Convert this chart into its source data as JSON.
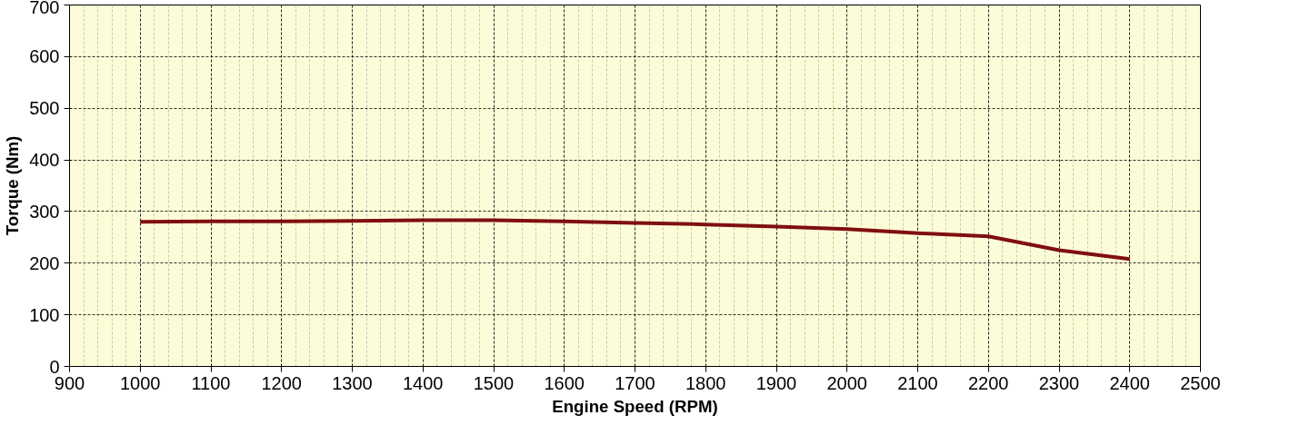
{
  "chart_data": {
    "type": "line",
    "xlabel": "Engine Speed (RPM)",
    "ylabel": "Torque (Nm)",
    "x": [
      1000,
      1100,
      1200,
      1300,
      1400,
      1500,
      1600,
      1700,
      1800,
      1900,
      2000,
      2100,
      2200,
      2300,
      2400
    ],
    "series": [
      {
        "color": "#7f0f10",
        "values": [
          280,
          281,
          281,
          282,
          283,
          283,
          281,
          278,
          275,
          271,
          266,
          258,
          252,
          225,
          208
        ]
      }
    ],
    "xlim": [
      900,
      2500
    ],
    "xticks": [
      900,
      1000,
      1100,
      1200,
      1300,
      1400,
      1500,
      1600,
      1700,
      1800,
      1900,
      2000,
      2100,
      2200,
      2300,
      2400,
      2500
    ],
    "ylim": [
      0,
      700
    ],
    "yticks": [
      0,
      100,
      200,
      300,
      400,
      500,
      600,
      700
    ],
    "grid": true,
    "marker": "none",
    "line_style": "solid"
  }
}
